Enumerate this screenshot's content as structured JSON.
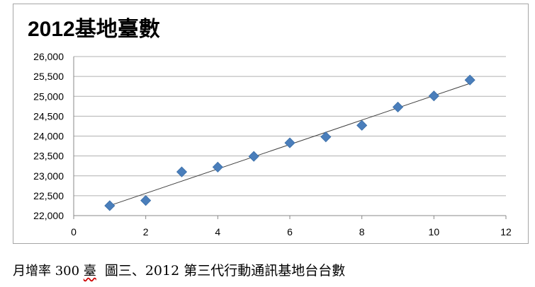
{
  "chart_data": {
    "type": "scatter",
    "title": "2012基地臺數",
    "xlabel": "",
    "ylabel": "",
    "xlim": [
      0,
      12
    ],
    "ylim": [
      22000,
      26000
    ],
    "x_ticks": [
      0,
      2,
      4,
      6,
      8,
      10,
      12
    ],
    "y_ticks": [
      22000,
      22500,
      23000,
      23500,
      24000,
      24500,
      25000,
      25500,
      26000
    ],
    "y_tick_labels": [
      "22,000",
      "22,500",
      "23,000",
      "23,500",
      "24,000",
      "24,500",
      "25,000",
      "25,500",
      "26,000"
    ],
    "grid": "horizontal",
    "legend": "none",
    "marker": "diamond",
    "marker_color": "#4a7ebb",
    "trendline": {
      "type": "linear",
      "color": "#404040",
      "x_start": 1,
      "x_end": 11
    },
    "series": [
      {
        "x": [
          1,
          2,
          3,
          4,
          5,
          6,
          7,
          8,
          9,
          10,
          11
        ],
        "values": [
          22250,
          22380,
          23100,
          23220,
          23490,
          23830,
          23980,
          24270,
          24730,
          25010,
          25410
        ]
      }
    ]
  },
  "caption": {
    "note_prefix": "月增率 300 ",
    "note_unit": "臺",
    "text": "圖三、2012 第三代行動通訊基地台台數"
  }
}
